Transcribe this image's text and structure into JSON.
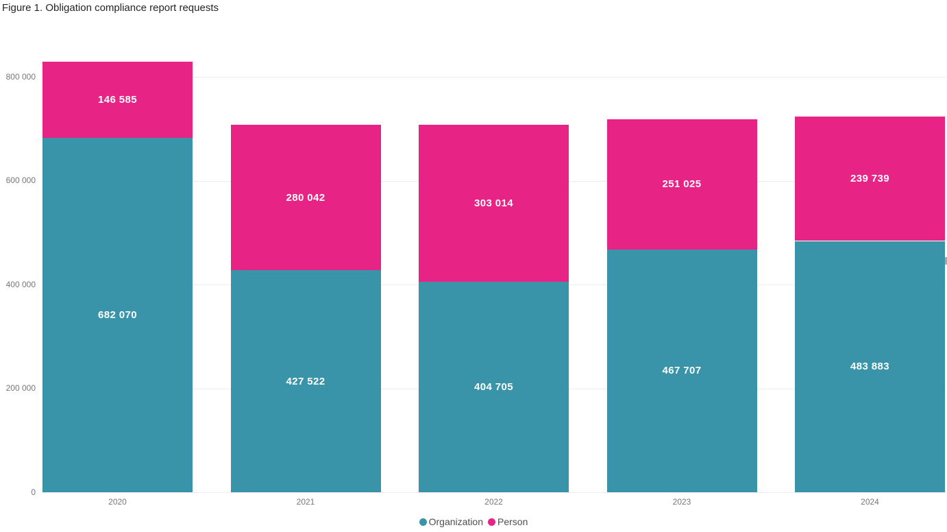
{
  "title": "Figure 1. Obligation compliance report requests",
  "colors": {
    "organization": "#3994A9",
    "person": "#E72386",
    "gridline": "#ECECEC",
    "axis_text": "#777776",
    "legend_text": "#4E4E4E",
    "title_text": "#252423",
    "bar_label_text": "#FFFFFF"
  },
  "chart_data": {
    "type": "bar",
    "stacked": true,
    "title": "Figure 1. Obligation compliance report requests",
    "xlabel": "",
    "ylabel": "",
    "grid": true,
    "legend_position": "bottom-center",
    "ylim": [
      0,
      830000
    ],
    "categories": [
      "2020",
      "2021",
      "2022",
      "2023",
      "2024"
    ],
    "series": [
      {
        "name": "Organization",
        "color_key": "organization",
        "values": [
          682070,
          427522,
          404705,
          467707,
          483883
        ],
        "labels": [
          "682 070",
          "427 522",
          "404 705",
          "467 707",
          "483 883"
        ]
      },
      {
        "name": "Person",
        "color_key": "person",
        "values": [
          146585,
          280042,
          303014,
          251025,
          239739
        ],
        "labels": [
          "146 585",
          "280 042",
          "303 014",
          "251 025",
          "239 739"
        ]
      }
    ],
    "y_ticks": [
      {
        "value": 0,
        "label": "0"
      },
      {
        "value": 200000,
        "label": "200 000"
      },
      {
        "value": 400000,
        "label": "400 000"
      },
      {
        "value": 600000,
        "label": "600 000"
      },
      {
        "value": 800000,
        "label": "800 000"
      }
    ],
    "legend": [
      {
        "label": "Organization",
        "color_key": "organization"
      },
      {
        "label": "Person",
        "color_key": "person"
      }
    ]
  }
}
